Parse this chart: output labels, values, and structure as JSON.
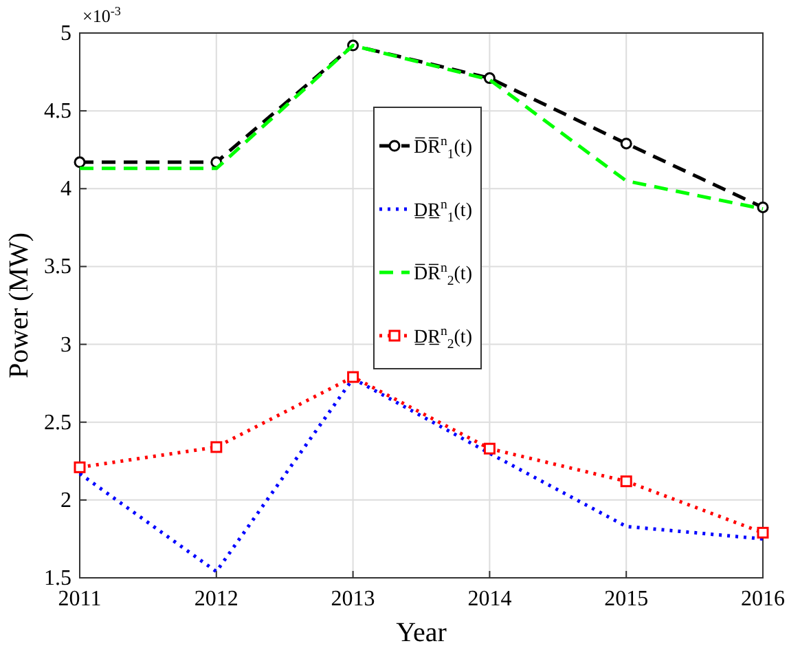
{
  "chart_data": {
    "type": "line",
    "xlabel": "Year",
    "ylabel": "Power (MW)",
    "annotations": [
      "×10$^{-3}$"
    ],
    "x": [
      2011,
      2012,
      2013,
      2014,
      2015,
      2016
    ],
    "xlim": [
      2011,
      2016
    ],
    "xticks": [
      2011,
      2012,
      2013,
      2014,
      2015,
      2016
    ],
    "ylim": [
      1.5,
      5
    ],
    "yticks": [
      1.5,
      2,
      2.5,
      3,
      3.5,
      4,
      4.5,
      5
    ],
    "grid": true,
    "legend": "center",
    "series": [
      {
        "name": "D̅R̅$^{n}$$_{1}$(t)",
        "color": "#000000",
        "marker": "circle",
        "line_style": "dashed",
        "values": [
          4.17,
          4.17,
          4.92,
          4.71,
          4.29,
          3.88
        ]
      },
      {
        "name": "D̲R̲$^{n}$$_{1}$(t)",
        "color": "#0000ff",
        "marker": "none",
        "line_style": "dotted",
        "values": [
          2.17,
          1.54,
          2.78,
          2.3,
          1.83,
          1.75
        ]
      },
      {
        "name": "D̅R̅$^{n}$$_{2}$(t)",
        "color": "#00ff00",
        "marker": "none",
        "line_style": "dashed",
        "values": [
          4.13,
          4.13,
          4.92,
          4.7,
          4.05,
          3.87
        ]
      },
      {
        "name": "D̲R̲$^{n}$$_{2}$(t)",
        "color": "#ff0000",
        "marker": "square",
        "line_style": "dotted",
        "values": [
          2.21,
          2.34,
          2.79,
          2.33,
          2.12,
          1.79
        ]
      }
    ]
  }
}
